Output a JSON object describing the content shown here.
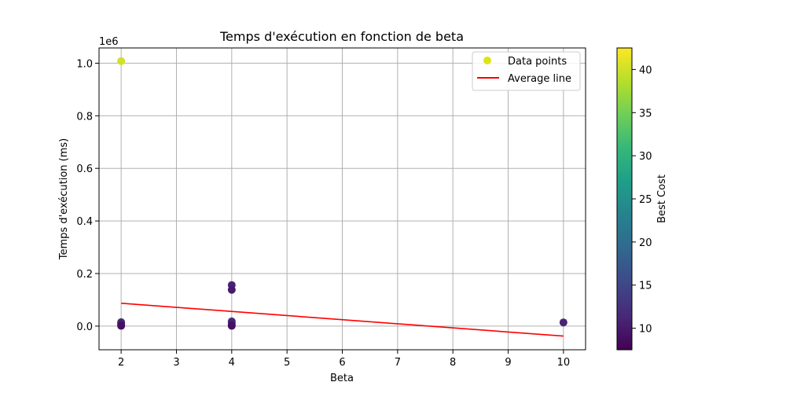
{
  "chart_data": {
    "type": "scatter",
    "title": "Temps d'exécution en fonction de beta",
    "xlabel": "Beta",
    "ylabel": "Temps d'exécution (ms)",
    "y_scale_label": "1e6",
    "xlim": [
      1.6,
      10.4
    ],
    "ylim": [
      -90000,
      1058000
    ],
    "x_ticks": [
      2,
      3,
      4,
      5,
      6,
      7,
      8,
      9,
      10
    ],
    "y_ticks": [
      0.0,
      0.2,
      0.4,
      0.6,
      0.8,
      1.0
    ],
    "y_tick_multiplier": 1000000,
    "grid": true,
    "legend_position": "top-right",
    "legend": [
      {
        "label": "Data points",
        "type": "marker",
        "color": "#dde318"
      },
      {
        "label": "Average line",
        "type": "line",
        "color": "#ff0000"
      }
    ],
    "series": [
      {
        "name": "Data points",
        "type": "scatter",
        "points": [
          {
            "x": 2,
            "y": 1008000,
            "cost": 40
          },
          {
            "x": 2,
            "y": 15000,
            "cost": 12
          },
          {
            "x": 2,
            "y": 10000,
            "cost": 11
          },
          {
            "x": 2,
            "y": 5000,
            "cost": 10
          },
          {
            "x": 2,
            "y": 1000,
            "cost": 9
          },
          {
            "x": 4,
            "y": 156000,
            "cost": 11
          },
          {
            "x": 4,
            "y": 138000,
            "cost": 10
          },
          {
            "x": 4,
            "y": 18000,
            "cost": 12
          },
          {
            "x": 4,
            "y": 12000,
            "cost": 11
          },
          {
            "x": 4,
            "y": 5000,
            "cost": 10
          },
          {
            "x": 4,
            "y": 1000,
            "cost": 9
          },
          {
            "x": 10,
            "y": 14000,
            "cost": 11
          }
        ]
      },
      {
        "name": "Average line",
        "type": "line",
        "color": "#ff0000",
        "x": [
          2,
          10
        ],
        "y": [
          87000,
          -38000
        ]
      }
    ],
    "colorbar": {
      "label": "Best Cost",
      "colormap": "viridis",
      "range": [
        7.5,
        42.5
      ],
      "ticks": [
        10,
        15,
        20,
        25,
        30,
        35,
        40
      ]
    }
  }
}
